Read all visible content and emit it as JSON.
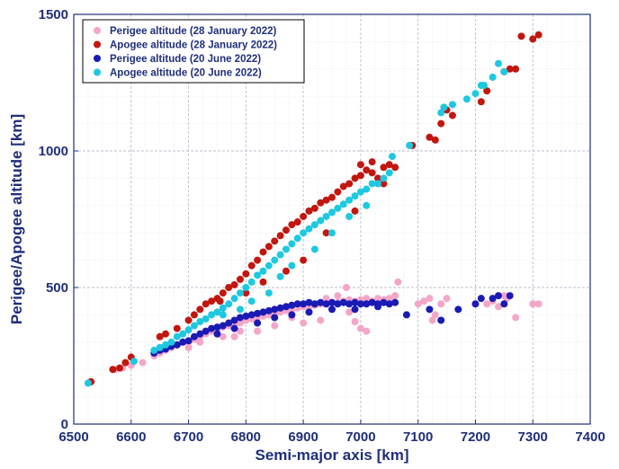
{
  "chart_data": {
    "type": "scatter",
    "xlabel": "Semi-major axis [km]",
    "ylabel": "Perigee/Apogee altitude [km]",
    "xlim": [
      6500,
      7400
    ],
    "ylim": [
      0,
      1500
    ],
    "xticks": [
      6500,
      6600,
      6700,
      6800,
      6900,
      7000,
      7100,
      7200,
      7300,
      7400
    ],
    "yticks": [
      0,
      500,
      1000,
      1500
    ],
    "grid": true,
    "legend_position": "top-left",
    "series": [
      {
        "name": "Perigee altitude (28 January 2022)",
        "color": "#f4a6c9",
        "points": [
          [
            6572,
            200
          ],
          [
            6585,
            205
          ],
          [
            6600,
            215
          ],
          [
            6620,
            225
          ],
          [
            6640,
            250
          ],
          [
            6650,
            260
          ],
          [
            6660,
            270
          ],
          [
            6670,
            280
          ],
          [
            6680,
            290
          ],
          [
            6690,
            300
          ],
          [
            6700,
            300
          ],
          [
            6710,
            310
          ],
          [
            6720,
            320
          ],
          [
            6730,
            330
          ],
          [
            6740,
            340
          ],
          [
            6750,
            345
          ],
          [
            6760,
            355
          ],
          [
            6770,
            360
          ],
          [
            6780,
            365
          ],
          [
            6790,
            370
          ],
          [
            6800,
            380
          ],
          [
            6810,
            385
          ],
          [
            6820,
            390
          ],
          [
            6830,
            395
          ],
          [
            6840,
            400
          ],
          [
            6850,
            405
          ],
          [
            6860,
            410
          ],
          [
            6870,
            415
          ],
          [
            6880,
            420
          ],
          [
            6890,
            425
          ],
          [
            6900,
            430
          ],
          [
            6910,
            430
          ],
          [
            6920,
            435
          ],
          [
            6930,
            440
          ],
          [
            6940,
            440
          ],
          [
            6950,
            445
          ],
          [
            6960,
            445
          ],
          [
            6970,
            450
          ],
          [
            6980,
            455
          ],
          [
            6990,
            450
          ],
          [
            7000,
            455
          ],
          [
            7010,
            460
          ],
          [
            7020,
            450
          ],
          [
            7030,
            460
          ],
          [
            7040,
            455
          ],
          [
            7050,
            460
          ],
          [
            7060,
            470
          ],
          [
            7065,
            520
          ],
          [
            7100,
            440
          ],
          [
            7110,
            450
          ],
          [
            7120,
            460
          ],
          [
            7125,
            380
          ],
          [
            7130,
            400
          ],
          [
            7140,
            440
          ],
          [
            7150,
            460
          ],
          [
            7220,
            440
          ],
          [
            7230,
            450
          ],
          [
            7240,
            430
          ],
          [
            7250,
            470
          ],
          [
            7255,
            460
          ],
          [
            7270,
            390
          ],
          [
            7300,
            440
          ],
          [
            7310,
            440
          ],
          [
            6760,
            320
          ],
          [
            6790,
            340
          ],
          [
            6850,
            360
          ],
          [
            6900,
            370
          ],
          [
            6930,
            380
          ],
          [
            7000,
            350
          ],
          [
            7010,
            340
          ],
          [
            6990,
            375
          ],
          [
            6880,
            390
          ],
          [
            6980,
            410
          ],
          [
            6720,
            300
          ],
          [
            6700,
            280
          ],
          [
            6940,
            460
          ],
          [
            6960,
            470
          ],
          [
            6975,
            500
          ],
          [
            6820,
            340
          ],
          [
            6780,
            320
          ]
        ]
      },
      {
        "name": "Apogee altitude (28 January 2022)",
        "color": "#c1170f",
        "points": [
          [
            6530,
            155
          ],
          [
            6568,
            200
          ],
          [
            6580,
            205
          ],
          [
            6590,
            225
          ],
          [
            6600,
            245
          ],
          [
            6650,
            320
          ],
          [
            6660,
            330
          ],
          [
            6680,
            350
          ],
          [
            6700,
            380
          ],
          [
            6710,
            400
          ],
          [
            6720,
            420
          ],
          [
            6730,
            440
          ],
          [
            6740,
            450
          ],
          [
            6750,
            460
          ],
          [
            6760,
            480
          ],
          [
            6770,
            500
          ],
          [
            6780,
            510
          ],
          [
            6790,
            530
          ],
          [
            6800,
            550
          ],
          [
            6810,
            580
          ],
          [
            6820,
            600
          ],
          [
            6830,
            630
          ],
          [
            6840,
            650
          ],
          [
            6850,
            670
          ],
          [
            6860,
            690
          ],
          [
            6870,
            710
          ],
          [
            6880,
            730
          ],
          [
            6890,
            740
          ],
          [
            6900,
            760
          ],
          [
            6910,
            780
          ],
          [
            6920,
            790
          ],
          [
            6930,
            810
          ],
          [
            6940,
            820
          ],
          [
            6950,
            830
          ],
          [
            6960,
            850
          ],
          [
            6970,
            870
          ],
          [
            6980,
            880
          ],
          [
            6990,
            900
          ],
          [
            7000,
            910
          ],
          [
            7010,
            930
          ],
          [
            7020,
            920
          ],
          [
            7030,
            900
          ],
          [
            7040,
            880
          ],
          [
            7050,
            950
          ],
          [
            7060,
            940
          ],
          [
            7090,
            1020
          ],
          [
            7120,
            1050
          ],
          [
            7130,
            1040
          ],
          [
            7140,
            1100
          ],
          [
            7150,
            1150
          ],
          [
            7160,
            1130
          ],
          [
            7210,
            1180
          ],
          [
            7220,
            1220
          ],
          [
            7250,
            1290
          ],
          [
            7260,
            1300
          ],
          [
            7270,
            1300
          ],
          [
            7280,
            1420
          ],
          [
            7300,
            1410
          ],
          [
            7310,
            1425
          ],
          [
            6755,
            450
          ],
          [
            6800,
            480
          ],
          [
            6830,
            520
          ],
          [
            6870,
            560
          ],
          [
            6900,
            600
          ],
          [
            6940,
            700
          ],
          [
            6990,
            780
          ],
          [
            7040,
            940
          ],
          [
            7020,
            960
          ],
          [
            7000,
            950
          ]
        ]
      },
      {
        "name": "Perigee altitude (20 June 2022)",
        "color": "#1a1ab4",
        "points": [
          [
            6640,
            260
          ],
          [
            6650,
            270
          ],
          [
            6660,
            275
          ],
          [
            6670,
            285
          ],
          [
            6680,
            290
          ],
          [
            6690,
            300
          ],
          [
            6700,
            305
          ],
          [
            6710,
            320
          ],
          [
            6720,
            330
          ],
          [
            6730,
            340
          ],
          [
            6740,
            350
          ],
          [
            6750,
            355
          ],
          [
            6760,
            360
          ],
          [
            6770,
            370
          ],
          [
            6780,
            380
          ],
          [
            6790,
            390
          ],
          [
            6800,
            395
          ],
          [
            6810,
            400
          ],
          [
            6820,
            405
          ],
          [
            6830,
            410
          ],
          [
            6840,
            415
          ],
          [
            6850,
            420
          ],
          [
            6860,
            425
          ],
          [
            6870,
            430
          ],
          [
            6880,
            435
          ],
          [
            6890,
            440
          ],
          [
            6900,
            440
          ],
          [
            6910,
            445
          ],
          [
            6920,
            440
          ],
          [
            6930,
            445
          ],
          [
            6940,
            440
          ],
          [
            6950,
            445
          ],
          [
            6960,
            440
          ],
          [
            6970,
            445
          ],
          [
            6980,
            440
          ],
          [
            6990,
            445
          ],
          [
            7000,
            440
          ],
          [
            7010,
            440
          ],
          [
            7020,
            445
          ],
          [
            7030,
            440
          ],
          [
            7040,
            445
          ],
          [
            7050,
            440
          ],
          [
            7060,
            445
          ],
          [
            7080,
            400
          ],
          [
            7120,
            420
          ],
          [
            7140,
            380
          ],
          [
            7170,
            420
          ],
          [
            7200,
            440
          ],
          [
            7210,
            460
          ],
          [
            7230,
            460
          ],
          [
            7240,
            470
          ],
          [
            7250,
            440
          ],
          [
            7260,
            470
          ],
          [
            6750,
            330
          ],
          [
            6780,
            350
          ],
          [
            6820,
            370
          ],
          [
            6850,
            390
          ],
          [
            6880,
            400
          ],
          [
            6910,
            410
          ],
          [
            6950,
            420
          ],
          [
            6990,
            420
          ],
          [
            7030,
            430
          ]
        ]
      },
      {
        "name": "Apogee altitude (20 June 2022)",
        "color": "#1ec8e0",
        "points": [
          [
            6525,
            150
          ],
          [
            6605,
            230
          ],
          [
            6640,
            270
          ],
          [
            6650,
            280
          ],
          [
            6660,
            290
          ],
          [
            6670,
            300
          ],
          [
            6680,
            320
          ],
          [
            6690,
            330
          ],
          [
            6700,
            345
          ],
          [
            6710,
            360
          ],
          [
            6720,
            375
          ],
          [
            6730,
            385
          ],
          [
            6740,
            400
          ],
          [
            6750,
            410
          ],
          [
            6760,
            425
          ],
          [
            6770,
            440
          ],
          [
            6780,
            460
          ],
          [
            6790,
            480
          ],
          [
            6800,
            500
          ],
          [
            6810,
            520
          ],
          [
            6820,
            545
          ],
          [
            6830,
            560
          ],
          [
            6840,
            580
          ],
          [
            6850,
            600
          ],
          [
            6860,
            620
          ],
          [
            6870,
            640
          ],
          [
            6880,
            660
          ],
          [
            6890,
            680
          ],
          [
            6900,
            700
          ],
          [
            6910,
            715
          ],
          [
            6920,
            730
          ],
          [
            6930,
            745
          ],
          [
            6940,
            760
          ],
          [
            6950,
            775
          ],
          [
            6960,
            790
          ],
          [
            6970,
            805
          ],
          [
            6980,
            820
          ],
          [
            6990,
            835
          ],
          [
            7000,
            850
          ],
          [
            7010,
            860
          ],
          [
            7020,
            880
          ],
          [
            7030,
            880
          ],
          [
            7040,
            900
          ],
          [
            7050,
            920
          ],
          [
            7055,
            980
          ],
          [
            7085,
            1020
          ],
          [
            7140,
            1140
          ],
          [
            7145,
            1160
          ],
          [
            7160,
            1170
          ],
          [
            7185,
            1190
          ],
          [
            7200,
            1210
          ],
          [
            7210,
            1240
          ],
          [
            7215,
            1240
          ],
          [
            7230,
            1270
          ],
          [
            7240,
            1320
          ],
          [
            7250,
            1290
          ],
          [
            6760,
            400
          ],
          [
            6790,
            420
          ],
          [
            6810,
            450
          ],
          [
            6840,
            480
          ],
          [
            6860,
            540
          ],
          [
            6880,
            580
          ],
          [
            6920,
            640
          ],
          [
            6950,
            700
          ],
          [
            6980,
            760
          ],
          [
            7010,
            800
          ]
        ]
      }
    ]
  }
}
